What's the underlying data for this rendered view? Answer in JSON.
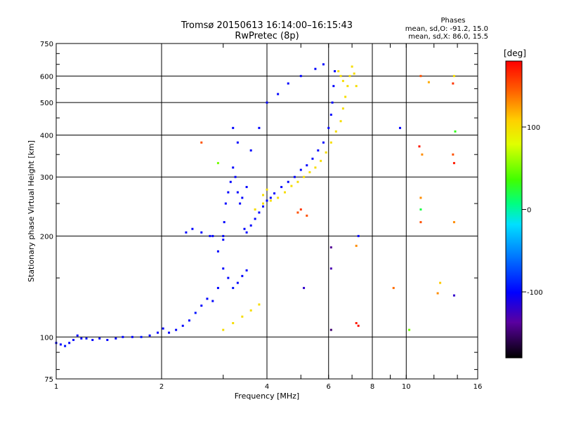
{
  "chart_data": {
    "type": "scatter",
    "title": "Tromsø 20150613 16:14:00–16:15:43",
    "subtitle": "RwPretec (8p)",
    "info": {
      "heading": "Phases",
      "line1": "mean, sd,O: -91.2, 15.0",
      "line2": "mean, sd,X:  86.0, 15.5"
    },
    "xlabel": "Frequency [MHz]",
    "ylabel": "Stationary phase Virtual Height [km]",
    "x_scale": "log",
    "y_scale": "log",
    "xlim": [
      1,
      16
    ],
    "ylim": [
      75,
      750
    ],
    "grid": true,
    "x_ticks": [
      {
        "value": 1,
        "label": "1"
      },
      {
        "value": 2,
        "label": "2"
      },
      {
        "value": 4,
        "label": "4"
      },
      {
        "value": 6,
        "label": "6"
      },
      {
        "value": 8,
        "label": "8"
      },
      {
        "value": 10,
        "label": "10"
      },
      {
        "value": 16,
        "label": "16"
      }
    ],
    "y_ticks": [
      {
        "value": 75,
        "label": "75"
      },
      {
        "value": 100,
        "label": "100"
      },
      {
        "value": 200,
        "label": "200"
      },
      {
        "value": 300,
        "label": "300"
      },
      {
        "value": 400,
        "label": "400"
      },
      {
        "value": 500,
        "label": "500"
      },
      {
        "value": 600,
        "label": "600"
      },
      {
        "value": 750,
        "label": "750"
      }
    ],
    "colorbar": {
      "label": "[deg]",
      "range": [
        -180,
        180
      ],
      "ticks": [
        {
          "value": 100,
          "label": "100"
        },
        {
          "value": 0,
          "label": "0"
        },
        {
          "value": -100,
          "label": "-100"
        }
      ]
    },
    "series": [
      {
        "points": [
          [
            1.0,
            96,
            -100
          ],
          [
            1.03,
            95,
            -100
          ],
          [
            1.06,
            94,
            -95
          ],
          [
            1.09,
            96,
            -100
          ],
          [
            1.12,
            98,
            -100
          ],
          [
            1.15,
            101,
            -100
          ],
          [
            1.18,
            99,
            -100
          ],
          [
            1.22,
            99,
            -95
          ],
          [
            1.27,
            98,
            -100
          ],
          [
            1.33,
            99,
            -100
          ],
          [
            1.4,
            98,
            -100
          ],
          [
            1.48,
            99,
            -100
          ],
          [
            1.55,
            100,
            -100
          ],
          [
            1.65,
            100,
            -100
          ],
          [
            1.75,
            100,
            -95
          ],
          [
            1.85,
            101,
            -100
          ],
          [
            1.95,
            103,
            -100
          ],
          [
            2.02,
            106,
            -100
          ],
          [
            2.1,
            103,
            -100
          ],
          [
            2.2,
            105,
            -100
          ],
          [
            2.3,
            108,
            -100
          ],
          [
            2.4,
            112,
            -100
          ],
          [
            2.5,
            118,
            -95
          ],
          [
            2.6,
            124,
            -100
          ],
          [
            2.7,
            130,
            -100
          ],
          [
            2.8,
            128,
            -100
          ],
          [
            2.9,
            140,
            -100
          ],
          [
            3.0,
            160,
            -100
          ],
          [
            3.1,
            150,
            -100
          ],
          [
            3.2,
            140,
            -95
          ],
          [
            3.3,
            145,
            -100
          ],
          [
            3.4,
            152,
            -100
          ],
          [
            3.5,
            158,
            -100
          ],
          [
            2.8,
            200,
            -100
          ],
          [
            2.9,
            180,
            -100
          ],
          [
            3.0,
            200,
            -100
          ],
          [
            3.02,
            220,
            -100
          ],
          [
            3.05,
            250,
            -100
          ],
          [
            3.1,
            270,
            -100
          ],
          [
            3.15,
            290,
            -100
          ],
          [
            3.2,
            320,
            -100
          ],
          [
            3.25,
            300,
            -100
          ],
          [
            3.3,
            270,
            -100
          ],
          [
            3.35,
            250,
            -100
          ],
          [
            3.4,
            260,
            -100
          ],
          [
            3.5,
            280,
            -100
          ],
          [
            3.45,
            210,
            -100
          ],
          [
            3.5,
            205,
            -100
          ],
          [
            3.6,
            215,
            -100
          ],
          [
            3.7,
            225,
            -100
          ],
          [
            3.8,
            235,
            -100
          ],
          [
            3.9,
            245,
            -100
          ],
          [
            4.0,
            255,
            -100
          ],
          [
            4.1,
            260,
            -100
          ],
          [
            4.2,
            268,
            -100
          ],
          [
            4.4,
            280,
            -100
          ],
          [
            4.6,
            290,
            -100
          ],
          [
            4.8,
            300,
            -100
          ],
          [
            5.0,
            315,
            -100
          ],
          [
            5.2,
            325,
            -100
          ],
          [
            5.4,
            340,
            -100
          ],
          [
            5.6,
            360,
            -100
          ],
          [
            5.8,
            380,
            -100
          ],
          [
            6.0,
            420,
            -100
          ],
          [
            6.1,
            460,
            -100
          ],
          [
            6.15,
            500,
            -100
          ],
          [
            6.2,
            560,
            -100
          ],
          [
            6.25,
            620,
            -100
          ],
          [
            3.6,
            360,
            -100
          ],
          [
            3.8,
            420,
            -100
          ],
          [
            4.0,
            500,
            -100
          ],
          [
            4.3,
            530,
            -100
          ],
          [
            4.6,
            570,
            -100
          ],
          [
            5.0,
            600,
            -100
          ],
          [
            5.5,
            630,
            -100
          ],
          [
            5.8,
            650,
            -100
          ],
          [
            3.2,
            420,
            -100
          ],
          [
            3.3,
            380,
            -100
          ],
          [
            2.35,
            205,
            -100
          ],
          [
            2.45,
            210,
            -100
          ],
          [
            2.6,
            205,
            -100
          ],
          [
            2.75,
            200,
            -100
          ],
          [
            3.0,
            195,
            -100
          ]
        ]
      },
      {
        "points": [
          [
            3.0,
            105,
            100
          ],
          [
            3.2,
            110,
            100
          ],
          [
            3.4,
            115,
            100
          ],
          [
            3.6,
            120,
            100
          ],
          [
            3.8,
            125,
            100
          ],
          [
            3.7,
            240,
            100
          ],
          [
            3.9,
            250,
            100
          ],
          [
            4.1,
            255,
            100
          ],
          [
            4.3,
            260,
            100
          ],
          [
            4.5,
            270,
            100
          ],
          [
            4.7,
            282,
            100
          ],
          [
            4.9,
            290,
            100
          ],
          [
            5.1,
            300,
            100
          ],
          [
            5.3,
            310,
            100
          ],
          [
            5.5,
            320,
            100
          ],
          [
            5.7,
            335,
            100
          ],
          [
            5.9,
            355,
            100
          ],
          [
            6.1,
            380,
            100
          ],
          [
            6.3,
            410,
            100
          ],
          [
            6.5,
            440,
            100
          ],
          [
            6.6,
            480,
            100
          ],
          [
            6.7,
            520,
            100
          ],
          [
            6.8,
            560,
            100
          ],
          [
            6.9,
            600,
            100
          ],
          [
            7.0,
            640,
            100
          ],
          [
            7.1,
            610,
            100
          ],
          [
            7.2,
            560,
            100
          ],
          [
            6.4,
            620,
            100
          ],
          [
            6.5,
            600,
            100
          ],
          [
            6.6,
            580,
            100
          ],
          [
            4.9,
            235,
            150
          ],
          [
            5.0,
            240,
            160
          ],
          [
            5.2,
            230,
            150
          ],
          [
            3.9,
            265,
            100
          ],
          [
            4.0,
            275,
            100
          ]
        ]
      },
      {
        "points": [
          [
            11.0,
            600,
            150
          ],
          [
            13.7,
            600,
            100
          ],
          [
            13.6,
            570,
            160
          ],
          [
            13.8,
            410,
            30
          ],
          [
            13.6,
            350,
            150
          ],
          [
            13.7,
            330,
            170
          ],
          [
            11.1,
            350,
            130
          ],
          [
            11.0,
            260,
            130
          ],
          [
            11.0,
            240,
            20
          ],
          [
            11.0,
            220,
            150
          ],
          [
            13.7,
            220,
            130
          ],
          [
            9.6,
            420,
            -100
          ],
          [
            10.2,
            105,
            50
          ],
          [
            12.5,
            145,
            110
          ],
          [
            12.3,
            135,
            130
          ],
          [
            13.7,
            133,
            -120
          ],
          [
            9.2,
            140,
            140
          ],
          [
            7.2,
            110,
            170
          ],
          [
            7.3,
            108,
            175
          ],
          [
            5.1,
            140,
            -120
          ],
          [
            6.1,
            160,
            -130
          ],
          [
            6.1,
            185,
            -140
          ],
          [
            6.1,
            105,
            -150
          ],
          [
            7.3,
            200,
            -100
          ],
          [
            7.2,
            187,
            130
          ],
          [
            2.6,
            380,
            150
          ],
          [
            2.9,
            330,
            50
          ],
          [
            10.9,
            370,
            170
          ],
          [
            11.6,
            575,
            120
          ]
        ]
      }
    ]
  }
}
